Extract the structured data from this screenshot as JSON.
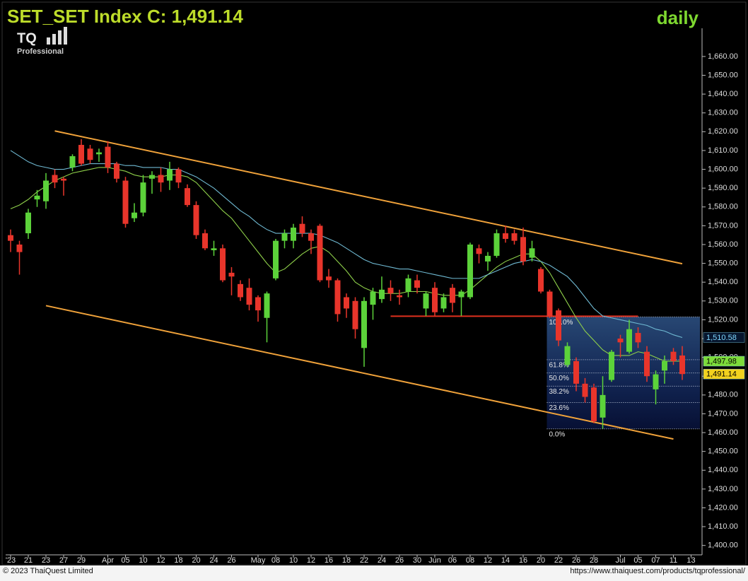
{
  "chart_data": {
    "type": "candlestick",
    "title": "SET_SET Index C: 1,491.14",
    "timeframe": "daily",
    "logo_text": "TQ",
    "logo_subtext": "Professional",
    "footer_left": "© 2023 ThaiQuest Limited",
    "footer_right": "https://www.thaiquest.com/products/tqprofessional/",
    "up_color": "#5cd23a",
    "down_color": "#e8352b",
    "categories": [
      "'23",
      null,
      "21",
      null,
      "23",
      null,
      "27",
      null,
      "29",
      null,
      null,
      "Apr",
      null,
      "05",
      null,
      "10",
      null,
      "12",
      null,
      "18",
      null,
      "20",
      null,
      "24",
      null,
      "26",
      null,
      null,
      "May",
      null,
      "08",
      null,
      "10",
      null,
      "12",
      null,
      "16",
      null,
      "18",
      null,
      "22",
      null,
      "24",
      null,
      "26",
      null,
      "30",
      null,
      "Jun",
      null,
      "06",
      null,
      "08",
      null,
      "12",
      null,
      "14",
      null,
      "16",
      null,
      "20",
      null,
      "22",
      null,
      "26",
      null,
      "28",
      null,
      null,
      "Jul",
      null,
      "05",
      null,
      "07",
      null,
      "11",
      null,
      "13"
    ],
    "open": [
      1565,
      1560,
      1566,
      1584,
      1583,
      1597,
      1595,
      1601,
      1613,
      1611,
      1608,
      1612,
      1603,
      1594,
      1574,
      1577,
      1595,
      1597,
      1594,
      1600,
      1590,
      1581,
      1566,
      1557,
      1558,
      1545,
      1539,
      1537,
      1532,
      1521,
      1542,
      1562,
      1562,
      1571,
      1566,
      1570,
      1543,
      1541,
      1532,
      1530,
      1505,
      1528,
      1531,
      1537,
      1533,
      1535,
      1541,
      1526,
      1537,
      1526,
      1537,
      1532,
      1532,
      1558,
      1551,
      1554,
      1566,
      1566,
      1564,
      1553,
      1547,
      1535,
      1525,
      1496,
      1498,
      1486,
      1484,
      1468,
      1488,
      1510,
      1503,
      1513,
      1503,
      1483,
      1493,
      1503,
      1501,
      null
    ],
    "high": [
      1568,
      1562,
      1579,
      1589,
      1598,
      1600,
      1596,
      1608,
      1616,
      1613,
      1611,
      1615,
      1604,
      1596,
      1582,
      1597,
      1599,
      1601,
      1604,
      1601,
      1592,
      1583,
      1568,
      1562,
      1560,
      1548,
      1541,
      1542,
      1533,
      1535,
      1563,
      1568,
      1571,
      1575,
      1568,
      1571,
      1547,
      1542,
      1534,
      1532,
      1532,
      1537,
      1543,
      1541,
      1536,
      1544,
      1544,
      1535,
      1540,
      1534,
      1539,
      1536,
      1561,
      1560,
      1556,
      1568,
      1570,
      1568,
      1569,
      1562,
      1548,
      1536,
      1526,
      1508,
      1500,
      1489,
      1486,
      1490,
      1504,
      1512,
      1520,
      1516,
      1506,
      1493,
      1501,
      1505,
      1506,
      null
    ],
    "low": [
      1556,
      1544,
      1563,
      1580,
      1579,
      1590,
      1586,
      1599,
      1602,
      1603,
      1604,
      1598,
      1593,
      1569,
      1572,
      1575,
      1587,
      1588,
      1589,
      1590,
      1580,
      1563,
      1557,
      1554,
      1540,
      1533,
      1530,
      1525,
      1519,
      1508,
      1541,
      1558,
      1558,
      1564,
      1555,
      1540,
      1537,
      1519,
      1521,
      1510,
      1495,
      1520,
      1529,
      1530,
      1528,
      1532,
      1534,
      1522,
      1522,
      1524,
      1524,
      1522,
      1531,
      1550,
      1546,
      1553,
      1561,
      1560,
      1549,
      1551,
      1534,
      1521,
      1506,
      1495,
      1482,
      1476,
      1465,
      1462,
      1487,
      1500,
      1502,
      1505,
      1487,
      1475,
      1486,
      1496,
      1488,
      null
    ],
    "close": [
      1562,
      1556,
      1577,
      1586,
      1594,
      1593,
      1594,
      1607,
      1603,
      1605,
      1609,
      1601,
      1595,
      1571,
      1577,
      1593,
      1597,
      1593,
      1600,
      1593,
      1581,
      1565,
      1558,
      1558,
      1541,
      1543,
      1532,
      1528,
      1525,
      1534,
      1562,
      1566,
      1569,
      1566,
      1562,
      1541,
      1541,
      1523,
      1526,
      1515,
      1530,
      1535,
      1536,
      1534,
      1532,
      1542,
      1537,
      1534,
      1524,
      1532,
      1529,
      1535,
      1560,
      1555,
      1554,
      1566,
      1563,
      1562,
      1551,
      1558,
      1535,
      1522,
      1509,
      1506,
      1486,
      1479,
      1466,
      1480,
      1503,
      1508,
      1515,
      1508,
      1490,
      1491,
      1498,
      1498,
      1491.14,
      null
    ],
    "series": [
      {
        "color": "#8fd04a",
        "values": [
          1579,
          1581,
          1584,
          1588,
          1591,
          1594,
          1596,
          1598,
          1599,
          1600,
          1601,
          1601,
          1600,
          1599,
          1597,
          1596,
          1596,
          1596,
          1597,
          1597,
          1596,
          1593,
          1588,
          1583,
          1578,
          1574,
          1568,
          1562,
          1556,
          1550,
          1545,
          1547,
          1551,
          1555,
          1558,
          1559,
          1556,
          1551,
          1546,
          1540,
          1537,
          1535,
          1534,
          1534,
          1534,
          1535,
          1535,
          1535,
          1534,
          1533,
          1533,
          1533,
          1536,
          1540,
          1544,
          1548,
          1551,
          1553,
          1555,
          1555,
          1551,
          1545,
          1537,
          1529,
          1521,
          1514,
          1509,
          1504,
          1501,
          1501,
          1501,
          1503,
          1502,
          1500,
          1498,
          1498,
          1497.98,
          null
        ]
      },
      {
        "color": "#6fb9d2",
        "values": [
          1610,
          1607,
          1604,
          1602,
          1601,
          1600,
          1600,
          1601,
          1602,
          1603,
          1603,
          1603,
          1603,
          1602,
          1602,
          1601,
          1601,
          1601,
          1600,
          1600,
          1598,
          1596,
          1593,
          1590,
          1586,
          1582,
          1578,
          1575,
          1571,
          1568,
          1566,
          1566,
          1566,
          1566,
          1566,
          1565,
          1563,
          1561,
          1558,
          1555,
          1552,
          1550,
          1549,
          1548,
          1547,
          1547,
          1546,
          1545,
          1544,
          1543,
          1542,
          1542,
          1542,
          1542,
          1544,
          1546,
          1548,
          1550,
          1551,
          1552,
          1551,
          1549,
          1546,
          1543,
          1538,
          1532,
          1526,
          1522,
          1521,
          1520,
          1519,
          1518,
          1517,
          1515,
          1514,
          1512,
          1510.58,
          null
        ]
      }
    ],
    "trendlines": [
      {
        "color": "#f0a23a",
        "x": [
          5,
          76
        ],
        "y": [
          1620.4,
          1549.8
        ]
      },
      {
        "color": "#f0a23a",
        "x": [
          4,
          75
        ],
        "y": [
          1527.5,
          1456.6
        ]
      },
      {
        "color": "#e0301e",
        "x": [
          43,
          71
        ],
        "y": [
          1521.9,
          1521.9
        ]
      }
    ],
    "fibonacci": {
      "start": 61,
      "levels": [
        {
          "label": "100.0%",
          "price": 1521.5
        },
        {
          "label": "61.8%",
          "price": 1498.8
        },
        {
          "label": "50.0%",
          "price": 1491.75
        },
        {
          "label": "38.2%",
          "price": 1484.7
        },
        {
          "label": "23.6%",
          "price": 1476.0
        },
        {
          "label": "0.0%",
          "price": 1462
        }
      ]
    },
    "price_tags": [
      {
        "label": "1,510.58",
        "value": 1510.58,
        "bg": "#07162e",
        "fg": "#7fd8ff"
      },
      {
        "label": "1,497.98",
        "value": 1497.98,
        "bg": "#7ddc3a",
        "fg": "#000000"
      },
      {
        "label": "1,491.14",
        "value": 1491.14,
        "bg": "#f2d21e",
        "fg": "#000000"
      }
    ],
    "ylim": [
      1395,
      1675
    ],
    "yticks": [
      {
        "value": 1400,
        "label": "1,400.00"
      },
      {
        "value": 1410,
        "label": "1,410.00"
      },
      {
        "value": 1420,
        "label": "1,420.00"
      },
      {
        "value": 1430,
        "label": "1,430.00"
      },
      {
        "value": 1440,
        "label": "1,440.00"
      },
      {
        "value": 1450,
        "label": "1,450.00"
      },
      {
        "value": 1460,
        "label": "1,460.00"
      },
      {
        "value": 1470,
        "label": "1,470.00"
      },
      {
        "value": 1480,
        "label": "1,480.00"
      },
      {
        "value": 1490,
        "label": "1,490.00"
      },
      {
        "value": 1500,
        "label": "1,500.00"
      },
      {
        "value": 1510,
        "label": "1,510.00"
      },
      {
        "value": 1520,
        "label": "1,520.00"
      },
      {
        "value": 1530,
        "label": "1,530.00"
      },
      {
        "value": 1540,
        "label": "1,540.00"
      },
      {
        "value": 1550,
        "label": "1,550.00"
      },
      {
        "value": 1560,
        "label": "1,560.00"
      },
      {
        "value": 1570,
        "label": "1,570.00"
      },
      {
        "value": 1580,
        "label": "1,580.00"
      },
      {
        "value": 1590,
        "label": "1,590.00"
      },
      {
        "value": 1600,
        "label": "1,600.00"
      },
      {
        "value": 1610,
        "label": "1,610.00"
      },
      {
        "value": 1620,
        "label": "1,620.00"
      },
      {
        "value": 1630,
        "label": "1,630.00"
      },
      {
        "value": 1640,
        "label": "1,640.00"
      },
      {
        "value": 1650,
        "label": "1,650.00"
      },
      {
        "value": 1660,
        "label": "1,660.00"
      }
    ]
  }
}
